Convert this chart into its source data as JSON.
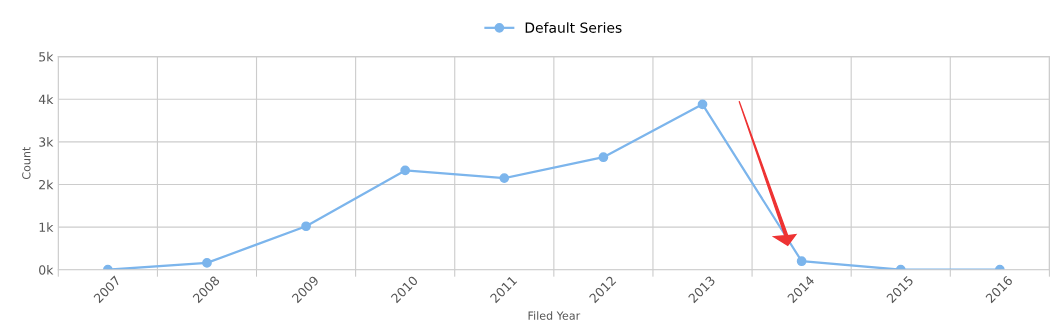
{
  "chart_data": {
    "type": "line",
    "xlabel": "Filed Year",
    "ylabel": "Count",
    "categories": [
      "2007",
      "2008",
      "2009",
      "2010",
      "2011",
      "2012",
      "2013",
      "2014",
      "2015",
      "2016"
    ],
    "series": [
      {
        "name": "Default Series",
        "color": "#7cb5ec",
        "values": [
          0,
          160,
          1020,
          2330,
          2150,
          2640,
          3880,
          200,
          0,
          0
        ]
      }
    ],
    "ylim": [
      0,
      5000
    ],
    "yticks": [
      {
        "value": 0,
        "label": "0k"
      },
      {
        "value": 1000,
        "label": "1k"
      },
      {
        "value": 2000,
        "label": "2k"
      },
      {
        "value": 3000,
        "label": "3k"
      },
      {
        "value": 4000,
        "label": "4k"
      },
      {
        "value": 5000,
        "label": "5k"
      }
    ],
    "grid": true,
    "legend": "top",
    "marker": "circle"
  }
}
